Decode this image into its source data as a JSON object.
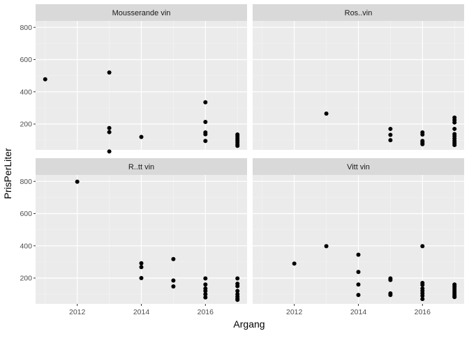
{
  "chart_data": {
    "type": "scatter",
    "facet_layout": "2x2",
    "xlabel": "Argang",
    "ylabel": "PrisPerLiter",
    "xlim": [
      2010.7,
      2017.3
    ],
    "ylim": [
      40,
      840
    ],
    "x_ticks": [
      2012,
      2014,
      2016
    ],
    "y_ticks": [
      200,
      400,
      600,
      800
    ],
    "grid": true,
    "panel_background": "#ebebeb",
    "strip_background": "#d9d9d9",
    "point_color": "#000000",
    "facets": [
      {
        "name": "Mousserande vin",
        "points": [
          {
            "x": 2011,
            "y": 478
          },
          {
            "x": 2013,
            "y": 520
          },
          {
            "x": 2013,
            "y": 175
          },
          {
            "x": 2013,
            "y": 150
          },
          {
            "x": 2013,
            "y": 30
          },
          {
            "x": 2014,
            "y": 120
          },
          {
            "x": 2016,
            "y": 335
          },
          {
            "x": 2016,
            "y": 213
          },
          {
            "x": 2016,
            "y": 148
          },
          {
            "x": 2016,
            "y": 137
          },
          {
            "x": 2016,
            "y": 95
          },
          {
            "x": 2017,
            "y": 135
          },
          {
            "x": 2017,
            "y": 125
          },
          {
            "x": 2017,
            "y": 112
          },
          {
            "x": 2017,
            "y": 100
          },
          {
            "x": 2017,
            "y": 88
          },
          {
            "x": 2017,
            "y": 75
          },
          {
            "x": 2017,
            "y": 65
          }
        ]
      },
      {
        "name": "Ros..vin",
        "points": [
          {
            "x": 2013,
            "y": 265
          },
          {
            "x": 2015,
            "y": 170
          },
          {
            "x": 2015,
            "y": 133
          },
          {
            "x": 2015,
            "y": 100
          },
          {
            "x": 2016,
            "y": 148
          },
          {
            "x": 2016,
            "y": 135
          },
          {
            "x": 2016,
            "y": 95
          },
          {
            "x": 2016,
            "y": 85
          },
          {
            "x": 2016,
            "y": 75
          },
          {
            "x": 2017,
            "y": 240
          },
          {
            "x": 2017,
            "y": 225
          },
          {
            "x": 2017,
            "y": 210
          },
          {
            "x": 2017,
            "y": 170
          },
          {
            "x": 2017,
            "y": 138
          },
          {
            "x": 2017,
            "y": 125
          },
          {
            "x": 2017,
            "y": 110
          },
          {
            "x": 2017,
            "y": 95
          },
          {
            "x": 2017,
            "y": 82
          },
          {
            "x": 2017,
            "y": 70
          }
        ]
      },
      {
        "name": "R..tt vin",
        "points": [
          {
            "x": 2012,
            "y": 798
          },
          {
            "x": 2014,
            "y": 292
          },
          {
            "x": 2014,
            "y": 268
          },
          {
            "x": 2014,
            "y": 200
          },
          {
            "x": 2015,
            "y": 318
          },
          {
            "x": 2015,
            "y": 185
          },
          {
            "x": 2015,
            "y": 148
          },
          {
            "x": 2016,
            "y": 198
          },
          {
            "x": 2016,
            "y": 160
          },
          {
            "x": 2016,
            "y": 135
          },
          {
            "x": 2016,
            "y": 120
          },
          {
            "x": 2016,
            "y": 100
          },
          {
            "x": 2016,
            "y": 80
          },
          {
            "x": 2017,
            "y": 198
          },
          {
            "x": 2017,
            "y": 165
          },
          {
            "x": 2017,
            "y": 150
          },
          {
            "x": 2017,
            "y": 120
          },
          {
            "x": 2017,
            "y": 100
          },
          {
            "x": 2017,
            "y": 85
          },
          {
            "x": 2017,
            "y": 72
          },
          {
            "x": 2017,
            "y": 65
          }
        ]
      },
      {
        "name": "Vitt vin",
        "points": [
          {
            "x": 2012,
            "y": 290
          },
          {
            "x": 2013,
            "y": 398
          },
          {
            "x": 2014,
            "y": 345
          },
          {
            "x": 2014,
            "y": 238
          },
          {
            "x": 2014,
            "y": 160
          },
          {
            "x": 2014,
            "y": 95
          },
          {
            "x": 2015,
            "y": 198
          },
          {
            "x": 2015,
            "y": 188
          },
          {
            "x": 2015,
            "y": 105
          },
          {
            "x": 2015,
            "y": 95
          },
          {
            "x": 2016,
            "y": 398
          },
          {
            "x": 2016,
            "y": 170
          },
          {
            "x": 2016,
            "y": 158
          },
          {
            "x": 2016,
            "y": 135
          },
          {
            "x": 2016,
            "y": 120
          },
          {
            "x": 2016,
            "y": 105
          },
          {
            "x": 2016,
            "y": 90
          },
          {
            "x": 2016,
            "y": 70
          },
          {
            "x": 2017,
            "y": 160
          },
          {
            "x": 2017,
            "y": 150
          },
          {
            "x": 2017,
            "y": 138
          },
          {
            "x": 2017,
            "y": 125
          },
          {
            "x": 2017,
            "y": 112
          },
          {
            "x": 2017,
            "y": 100
          },
          {
            "x": 2017,
            "y": 90
          },
          {
            "x": 2017,
            "y": 82
          }
        ]
      }
    ]
  }
}
